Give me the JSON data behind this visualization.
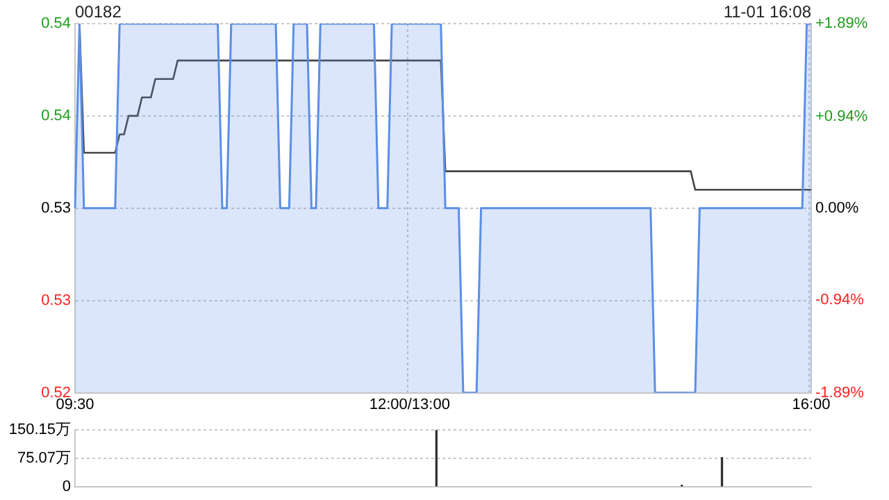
{
  "chart_data": [
    {
      "type": "area",
      "title": "00182",
      "annotations": [
        "11-01 16:08"
      ],
      "categories": [
        "09:30",
        null,
        null,
        null,
        null,
        null,
        null,
        null,
        null,
        null,
        null,
        null,
        null,
        null,
        null,
        null,
        null,
        null,
        null,
        null,
        null,
        null,
        null,
        null,
        null,
        null,
        null,
        null,
        null,
        null,
        null,
        null,
        null,
        null,
        null,
        null,
        null,
        null,
        null,
        null,
        null,
        null,
        null,
        null,
        null,
        null,
        null,
        null,
        null,
        null,
        null,
        null,
        null,
        null,
        null,
        null,
        null,
        null,
        null,
        null,
        null,
        null,
        null,
        null,
        null,
        null,
        null,
        null,
        null,
        null,
        null,
        null,
        null,
        null,
        null,
        "12:00/13:00",
        null,
        null,
        null,
        null,
        null,
        null,
        null,
        null,
        null,
        null,
        null,
        null,
        null,
        null,
        null,
        null,
        null,
        null,
        null,
        null,
        null,
        null,
        null,
        null,
        null,
        null,
        null,
        null,
        null,
        null,
        null,
        null,
        null,
        null,
        null,
        null,
        null,
        null,
        null,
        null,
        null,
        null,
        null,
        null,
        null,
        null,
        null,
        null,
        null,
        null,
        null,
        null,
        null,
        null,
        null,
        null,
        null,
        null,
        null,
        null,
        null,
        null,
        null,
        null,
        null,
        null,
        null,
        null,
        null,
        null,
        null,
        null,
        null,
        null,
        null,
        null,
        null,
        null,
        null,
        null,
        null,
        null,
        null,
        null,
        null,
        null,
        null,
        null,
        null,
        "16:00"
      ],
      "ylim": [
        0.52,
        0.54
      ],
      "yticks": [
        0.52,
        {
          "value": 0.525,
          "label": "0.53"
        },
        0.53,
        {
          "value": 0.535,
          "label": "0.54"
        },
        0.54
      ],
      "y2lim": [
        -1.89,
        1.89
      ],
      "y2ticks": [
        {
          "value": -1.89,
          "label": "-1.89%"
        },
        {
          "value": -0.94,
          "label": "-0.94%"
        },
        {
          "value": 0,
          "label": "0.00%"
        },
        {
          "value": 0.94,
          "label": "+0.94%"
        },
        {
          "value": 1.89,
          "label": "+1.89%"
        }
      ],
      "grid": true,
      "legend": false,
      "series": [
        {
          "color": "#5b8ee6",
          "values": [
            0.53,
            0.54,
            0.53,
            0.53,
            0.53,
            0.53,
            0.53,
            0.53,
            0.53,
            0.53,
            0.54,
            0.54,
            0.54,
            0.54,
            0.54,
            0.54,
            0.54,
            0.54,
            0.54,
            0.54,
            0.54,
            0.54,
            0.54,
            0.54,
            0.54,
            0.54,
            0.54,
            0.54,
            0.54,
            0.54,
            0.54,
            0.54,
            0.54,
            0.53,
            0.53,
            0.54,
            0.54,
            0.54,
            0.54,
            0.54,
            0.54,
            0.54,
            0.54,
            0.54,
            0.54,
            0.54,
            0.53,
            0.53,
            0.53,
            0.54,
            0.54,
            0.54,
            0.54,
            0.53,
            0.53,
            0.54,
            0.54,
            0.54,
            0.54,
            0.54,
            0.54,
            0.54,
            0.54,
            0.54,
            0.54,
            0.54,
            0.54,
            0.54,
            0.53,
            0.53,
            0.53,
            0.54,
            0.54,
            0.54,
            0.54,
            0.54,
            0.54,
            0.54,
            0.54,
            0.54,
            0.54,
            0.54,
            0.54,
            0.53,
            0.53,
            0.53,
            0.53,
            0.52,
            0.52,
            0.52,
            0.52,
            0.53,
            0.53,
            0.53,
            0.53,
            0.53,
            0.53,
            0.53,
            0.53,
            0.53,
            0.53,
            0.53,
            0.53,
            0.53,
            0.53,
            0.53,
            0.53,
            0.53,
            0.53,
            0.53,
            0.53,
            0.53,
            0.53,
            0.53,
            0.53,
            0.53,
            0.53,
            0.53,
            0.53,
            0.53,
            0.53,
            0.53,
            0.53,
            0.53,
            0.53,
            0.53,
            0.53,
            0.53,
            0.53,
            0.53,
            0.52,
            0.52,
            0.52,
            0.52,
            0.52,
            0.52,
            0.52,
            0.52,
            0.52,
            0.52,
            0.53,
            0.53,
            0.53,
            0.53,
            0.53,
            0.53,
            0.53,
            0.53,
            0.53,
            0.53,
            0.53,
            0.53,
            0.53,
            0.53,
            0.53,
            0.53,
            0.53,
            0.53,
            0.53,
            0.53,
            0.53,
            0.53,
            0.53,
            0.53,
            0.54,
            0.54
          ]
        },
        {
          "type": "line",
          "color": "#444444",
          "values": [
            null,
            0.54,
            0.533,
            0.533,
            0.533,
            0.533,
            0.533,
            0.533,
            0.533,
            0.533,
            0.534,
            0.534,
            0.535,
            0.535,
            0.535,
            0.536,
            0.536,
            0.536,
            0.537,
            0.537,
            0.537,
            0.537,
            0.537,
            0.538,
            0.538,
            0.538,
            0.538,
            0.538,
            0.538,
            0.538,
            0.538,
            0.538,
            0.538,
            0.538,
            0.538,
            0.538,
            0.538,
            0.538,
            0.538,
            0.538,
            0.538,
            0.538,
            0.538,
            0.538,
            0.538,
            0.538,
            0.538,
            0.538,
            0.538,
            0.538,
            0.538,
            0.538,
            0.538,
            0.538,
            0.538,
            0.538,
            0.538,
            0.538,
            0.538,
            0.538,
            0.538,
            0.538,
            0.538,
            0.538,
            0.538,
            0.538,
            0.538,
            0.538,
            0.538,
            0.538,
            0.538,
            0.538,
            0.538,
            0.538,
            0.538,
            0.538,
            0.538,
            0.538,
            0.538,
            0.538,
            0.538,
            0.538,
            0.538,
            0.532,
            0.532,
            0.532,
            0.532,
            0.532,
            0.532,
            0.532,
            0.532,
            0.532,
            0.532,
            0.532,
            0.532,
            0.532,
            0.532,
            0.532,
            0.532,
            0.532,
            0.532,
            0.532,
            0.532,
            0.532,
            0.532,
            0.532,
            0.532,
            0.532,
            0.532,
            0.532,
            0.532,
            0.532,
            0.532,
            0.532,
            0.532,
            0.532,
            0.532,
            0.532,
            0.532,
            0.532,
            0.532,
            0.532,
            0.532,
            0.532,
            0.532,
            0.532,
            0.532,
            0.532,
            0.532,
            0.532,
            0.532,
            0.532,
            0.532,
            0.532,
            0.532,
            0.532,
            0.532,
            0.532,
            0.532,
            0.531,
            0.531,
            0.531,
            0.531,
            0.531,
            0.531,
            0.531,
            0.531,
            0.531,
            0.531,
            0.531,
            0.531,
            0.531,
            0.531,
            0.531,
            0.531,
            0.531,
            0.531,
            0.531,
            0.531,
            0.531,
            0.531,
            0.531,
            0.531,
            0.531,
            0.531,
            0.531
          ]
        }
      ]
    },
    {
      "type": "bar",
      "categories": [
        null,
        null,
        null,
        null,
        null,
        null,
        null,
        null,
        null,
        null,
        null,
        null,
        null,
        null,
        null,
        null,
        null,
        null,
        null,
        null,
        null,
        null,
        null,
        null,
        null,
        null,
        null,
        null,
        null,
        null,
        null,
        null,
        null,
        null,
        null,
        null,
        null,
        null,
        null,
        null,
        null,
        null,
        null,
        null,
        null,
        null,
        null,
        null,
        null,
        null,
        null,
        null,
        null,
        null,
        null,
        null,
        null,
        null,
        null,
        null,
        null,
        null,
        null,
        null,
        null,
        null,
        null,
        null,
        null,
        null,
        null,
        null,
        null,
        null,
        null,
        null,
        null,
        null,
        null,
        null,
        null,
        null,
        null,
        null,
        null,
        null,
        null,
        null,
        null,
        null,
        null,
        null,
        null,
        null,
        null,
        null,
        null,
        null,
        null,
        null,
        null,
        null,
        null,
        null,
        null,
        null,
        null,
        null,
        null,
        null,
        null,
        null,
        null,
        null,
        null,
        null,
        null,
        null,
        null,
        null,
        null,
        null,
        null,
        null,
        null,
        null,
        null,
        null,
        null,
        null,
        null,
        null,
        null,
        null,
        null,
        null,
        null,
        null,
        null,
        null,
        null,
        null,
        null,
        null,
        null,
        null,
        null,
        null,
        null,
        null,
        null,
        null,
        null,
        null,
        null,
        null,
        null,
        null,
        null,
        null,
        null,
        null,
        null,
        null,
        null,
        null
      ],
      "ylim": [
        0,
        150.15
      ],
      "yticks": [
        0,
        {
          "value": 75.07,
          "label": "75.07万"
        },
        {
          "value": 150.15,
          "label": "150.15万"
        }
      ],
      "tick_labels": "y",
      "grid": "y",
      "legend": false,
      "series": [
        {
          "color": "#333333",
          "values": [
            null,
            null,
            null,
            null,
            null,
            null,
            null,
            null,
            null,
            null,
            null,
            null,
            null,
            null,
            null,
            null,
            null,
            null,
            null,
            null,
            null,
            null,
            null,
            null,
            null,
            null,
            null,
            null,
            null,
            null,
            null,
            null,
            null,
            null,
            null,
            null,
            null,
            null,
            null,
            null,
            null,
            null,
            null,
            null,
            null,
            null,
            null,
            null,
            null,
            null,
            null,
            null,
            null,
            null,
            null,
            null,
            null,
            null,
            null,
            null,
            null,
            null,
            null,
            null,
            null,
            null,
            null,
            null,
            null,
            null,
            null,
            null,
            null,
            null,
            null,
            null,
            null,
            null,
            null,
            null,
            null,
            150,
            null,
            null,
            null,
            null,
            null,
            null,
            null,
            null,
            null,
            null,
            null,
            null,
            null,
            null,
            null,
            null,
            null,
            null,
            null,
            null,
            null,
            null,
            null,
            null,
            null,
            null,
            null,
            null,
            null,
            null,
            null,
            null,
            null,
            null,
            null,
            null,
            null,
            null,
            null,
            null,
            null,
            null,
            null,
            null,
            null,
            null,
            null,
            null,
            null,
            null,
            null,
            null,
            null,
            null,
            4,
            null,
            null,
            null,
            null,
            null,
            null,
            null,
            null,
            77,
            null,
            null,
            null,
            null,
            null,
            null,
            null,
            null,
            null,
            null,
            null,
            null,
            null,
            null,
            null,
            null,
            null,
            null,
            null,
            null
          ]
        }
      ]
    }
  ]
}
